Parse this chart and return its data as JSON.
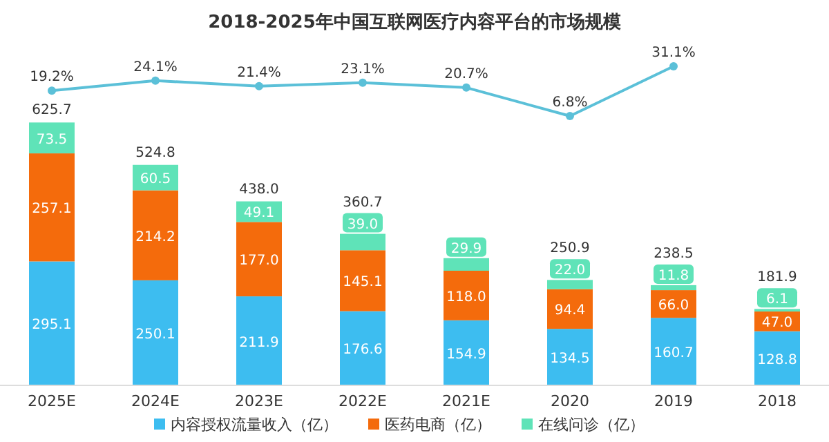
{
  "chart_data": [
    {
      "type": "line",
      "title": "2018-2025年中国互联网医疗内容平台的市场规模",
      "categories": [
        null,
        null,
        null,
        null,
        null,
        null,
        null,
        null
      ],
      "series": [
        {
          "color": "#5bc0d8",
          "marker": "circle",
          "values": [
            19.2,
            24.1,
            21.4,
            23.1,
            20.7,
            6.8,
            31.1,
            null
          ],
          "value_labels": [
            "19.2%",
            "24.1%",
            "21.4%",
            "23.1%",
            "20.7%",
            "6.8%",
            "31.1%",
            null
          ]
        }
      ]
    },
    {
      "type": "bar",
      "categories": [
        "2025E",
        "2024E",
        "2023E",
        "2022E",
        "2021E",
        "2020",
        "2019",
        "2018"
      ],
      "stacked": true,
      "legend": "bottom",
      "series": [
        {
          "name": "内容授权流量收入（亿）",
          "color": "#3dbdf0",
          "values": [
            295.1,
            250.1,
            211.9,
            176.6,
            154.9,
            134.5,
            160.7,
            128.8
          ],
          "value_labels": [
            "295.1",
            "250.1",
            "211.9",
            "176.6",
            "154.9",
            "134.5",
            "160.7",
            "128.8"
          ]
        },
        {
          "name": "医药电商（亿）",
          "color": "#f46b0c",
          "values": [
            257.1,
            214.2,
            177.0,
            145.1,
            118.0,
            94.4,
            66.0,
            47.0
          ],
          "value_labels": [
            "257.1",
            "214.2",
            "177.0",
            "145.1",
            "118.0",
            "94.4",
            "66.0",
            "47.0"
          ]
        },
        {
          "name": "在线问诊（亿）",
          "color": "#5fe3b8",
          "values": [
            73.5,
            60.5,
            49.1,
            39.0,
            29.9,
            22.0,
            11.8,
            6.1
          ],
          "value_labels": [
            "73.5",
            "60.5",
            "49.1",
            "39.0",
            "29.9",
            "22.0",
            "11.8",
            "6.1"
          ]
        }
      ],
      "totals": [
        "625.7",
        "524.8",
        "438.0",
        "360.7",
        null,
        "250.9",
        "238.5",
        "181.9"
      ]
    }
  ]
}
